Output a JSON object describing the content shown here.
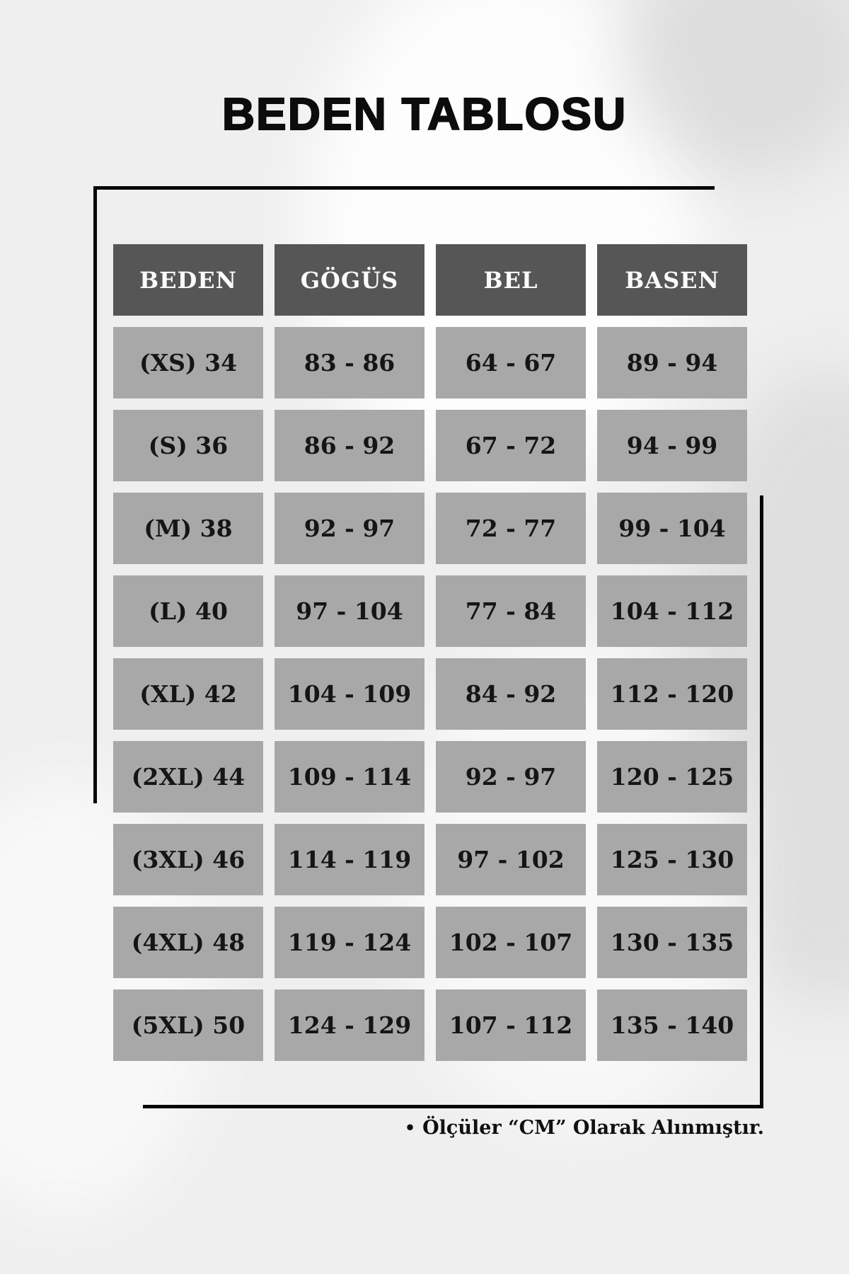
{
  "title": "BEDEN TABLOSU",
  "chart_data": {
    "type": "table",
    "title": "BEDEN TABLOSU",
    "columns": [
      "BEDEN",
      "GÖGÜS",
      "BEL",
      "BASEN"
    ],
    "rows": [
      [
        "(XS) 34",
        "83 - 86",
        "64 - 67",
        "89 - 94"
      ],
      [
        "(S) 36",
        "86 - 92",
        "67 - 72",
        "94 - 99"
      ],
      [
        "(M) 38",
        "92 - 97",
        "72 - 77",
        "99 - 104"
      ],
      [
        "(L) 40",
        "97 - 104",
        "77 - 84",
        "104 - 112"
      ],
      [
        "(XL) 42",
        "104 - 109",
        "84 - 92",
        "112 - 120"
      ],
      [
        "(2XL) 44",
        "109 - 114",
        "92 - 97",
        "120 - 125"
      ],
      [
        "(3XL) 46",
        "114 - 119",
        "97 - 102",
        "125 - 130"
      ],
      [
        "(4XL) 48",
        "119 - 124",
        "102 - 107",
        "130 - 135"
      ],
      [
        "(5XL) 50",
        "124 - 129",
        "107 - 112",
        "135 - 140"
      ]
    ],
    "unit_note": "Ölçüler “CM” Olarak Alınmıştır."
  },
  "footer": {
    "bullet": "•",
    "note": "Ölçüler “CM” Olarak Alınmıştır."
  },
  "colors": {
    "page_bg": "#efefef",
    "header_bg": "#565656",
    "header_text": "#fbfbfb",
    "cell_bg": "#a8a8a8",
    "cell_text": "#151515",
    "rule": "#070707",
    "title_text": "#0c0c0c"
  }
}
